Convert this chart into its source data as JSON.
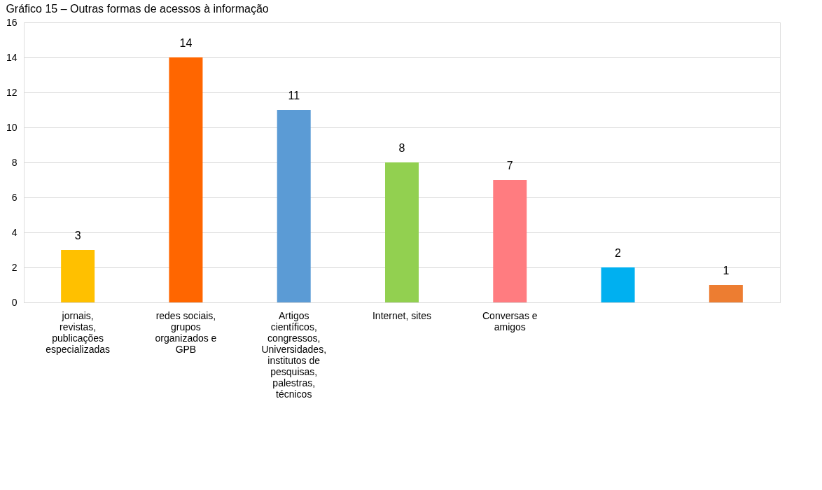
{
  "chart_data": {
    "type": "bar",
    "title": "Gráfico 15 – Outras formas de acessos à informação",
    "categories": [
      "jornais, revistas, publicações especializadas",
      "redes sociais, grupos organizados e GPB",
      "Artigos científicos, congressos, Universidades, institutos de pesquisas, palestras, técnicos",
      "Internet, sites",
      "Conversas e amigos",
      null,
      null
    ],
    "values": [
      3,
      14,
      11,
      8,
      7,
      2,
      1
    ],
    "colors": [
      "#ffc000",
      "#ff6600",
      "#5b9bd5",
      "#92d050",
      "#ff7c80",
      "#00b0f0",
      "#ed7d31"
    ],
    "ylim": [
      0,
      16
    ],
    "yticks": [
      0,
      2,
      4,
      6,
      8,
      10,
      12,
      14,
      16
    ],
    "grid": "y",
    "data_labels": true
  }
}
